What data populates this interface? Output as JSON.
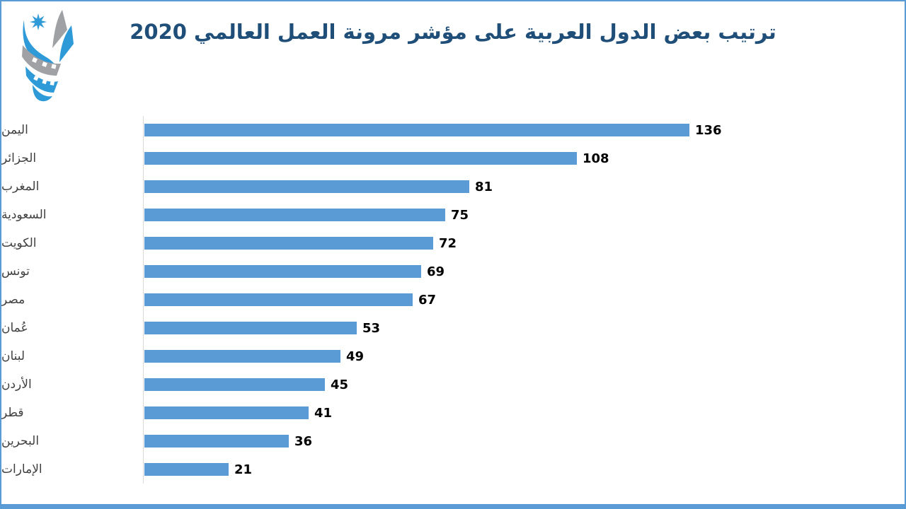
{
  "page": {
    "background": "#FFFFFF",
    "border_color": "#5B9BD5",
    "bottom_bar_color": "#5B9BD5"
  },
  "title": "ترتيب بعض الدول العربية على مؤشر مرونة العمل العالمي 2020",
  "colors": {
    "title": "#1F4E79",
    "bar": "#5B9BD5",
    "value_label": "#000000",
    "category_label": "#404040",
    "axis_line": "#D9D9D9",
    "logo_blue": "#2E9AD8",
    "logo_gray": "#9FA1A4"
  },
  "chart_data": {
    "type": "bar",
    "orientation": "horizontal",
    "title": "ترتيب بعض الدول العربية على مؤشر مرونة العمل العالمي 2020",
    "categories": [
      "اليمن",
      "الجزائر",
      "المغرب",
      "السعودية",
      "الكويت",
      "تونس",
      "مصر",
      "عُمان",
      "لبنان",
      "الأردن",
      "قطر",
      "البحرين",
      "الإمارات"
    ],
    "values": [
      136,
      108,
      81,
      75,
      72,
      69,
      67,
      53,
      49,
      45,
      41,
      36,
      21
    ],
    "data_labels": [
      136,
      108,
      81,
      75,
      72,
      69,
      67,
      53,
      49,
      45,
      41,
      36,
      21
    ],
    "xlabel": "",
    "ylabel": "",
    "xlim": [
      0,
      136
    ],
    "grid": false,
    "legend": false,
    "value_labels_shown": true,
    "axis_ticks_shown": false
  }
}
